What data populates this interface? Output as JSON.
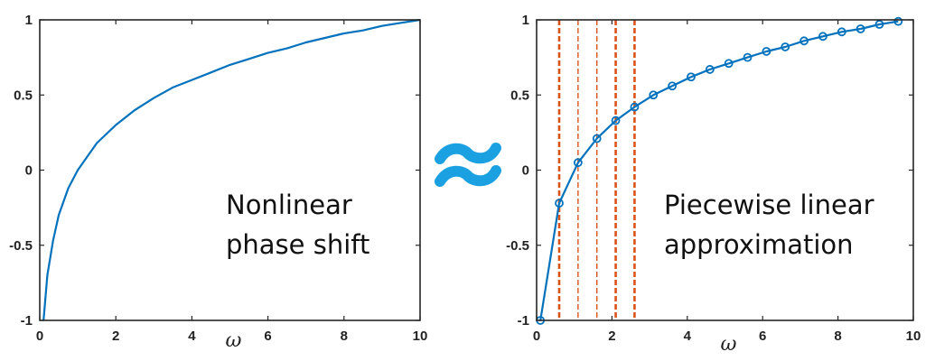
{
  "chart_data": [
    {
      "type": "line",
      "title": "",
      "xlabel": "ω",
      "ylabel": "",
      "xlim": [
        0,
        10
      ],
      "ylim": [
        -1,
        1
      ],
      "xticks": [
        "0",
        "2",
        "4",
        "6",
        "8",
        "10"
      ],
      "yticks": [
        "-1",
        "-0.5",
        "0",
        "0.5",
        "1"
      ],
      "grid": false,
      "annotation": [
        "Nonlinear",
        "phase shift"
      ],
      "series": [
        {
          "color": "#0072bd",
          "x": [
            0.1,
            0.2,
            0.35,
            0.5,
            0.75,
            1,
            1.5,
            2,
            2.5,
            3,
            3.5,
            4,
            4.5,
            5,
            5.5,
            6,
            6.5,
            7,
            7.5,
            8,
            8.5,
            9,
            9.5,
            10
          ],
          "y": [
            -1,
            -0.7,
            -0.47,
            -0.3,
            -0.12,
            0,
            0.18,
            0.3,
            0.4,
            0.48,
            0.55,
            0.6,
            0.65,
            0.7,
            0.74,
            0.78,
            0.81,
            0.85,
            0.88,
            0.91,
            0.93,
            0.96,
            0.98,
            1
          ]
        }
      ]
    },
    {
      "type": "line",
      "title": "",
      "xlabel": "ω",
      "ylabel": "",
      "xlim": [
        0,
        10
      ],
      "ylim": [
        -1,
        1
      ],
      "xticks": [
        "0",
        "2",
        "4",
        "6",
        "8",
        "10"
      ],
      "yticks": [
        "-1",
        "-0.5",
        "0",
        "0.5",
        "1"
      ],
      "grid": false,
      "annotation": [
        "Piecewise linear",
        "approximation"
      ],
      "vlines": [
        0.6,
        1.1,
        1.6,
        2.1,
        2.6
      ],
      "vline_color": "#d95319",
      "series": [
        {
          "color": "#0072bd",
          "marker": "circle",
          "x": [
            0.1,
            0.6,
            1.1,
            1.6,
            2.1,
            2.6,
            3.1,
            3.6,
            4.1,
            4.6,
            5.1,
            5.6,
            6.1,
            6.6,
            7.1,
            7.6,
            8.1,
            8.6,
            9.1,
            9.6
          ],
          "y": [
            -1,
            -0.22,
            0.05,
            0.21,
            0.33,
            0.42,
            0.5,
            0.56,
            0.62,
            0.67,
            0.71,
            0.75,
            0.79,
            0.82,
            0.86,
            0.89,
            0.92,
            0.94,
            0.97,
            0.99
          ]
        }
      ]
    }
  ],
  "approx_symbol": {
    "name": "approximately-equal-icon",
    "color": "#1ba1e2"
  }
}
